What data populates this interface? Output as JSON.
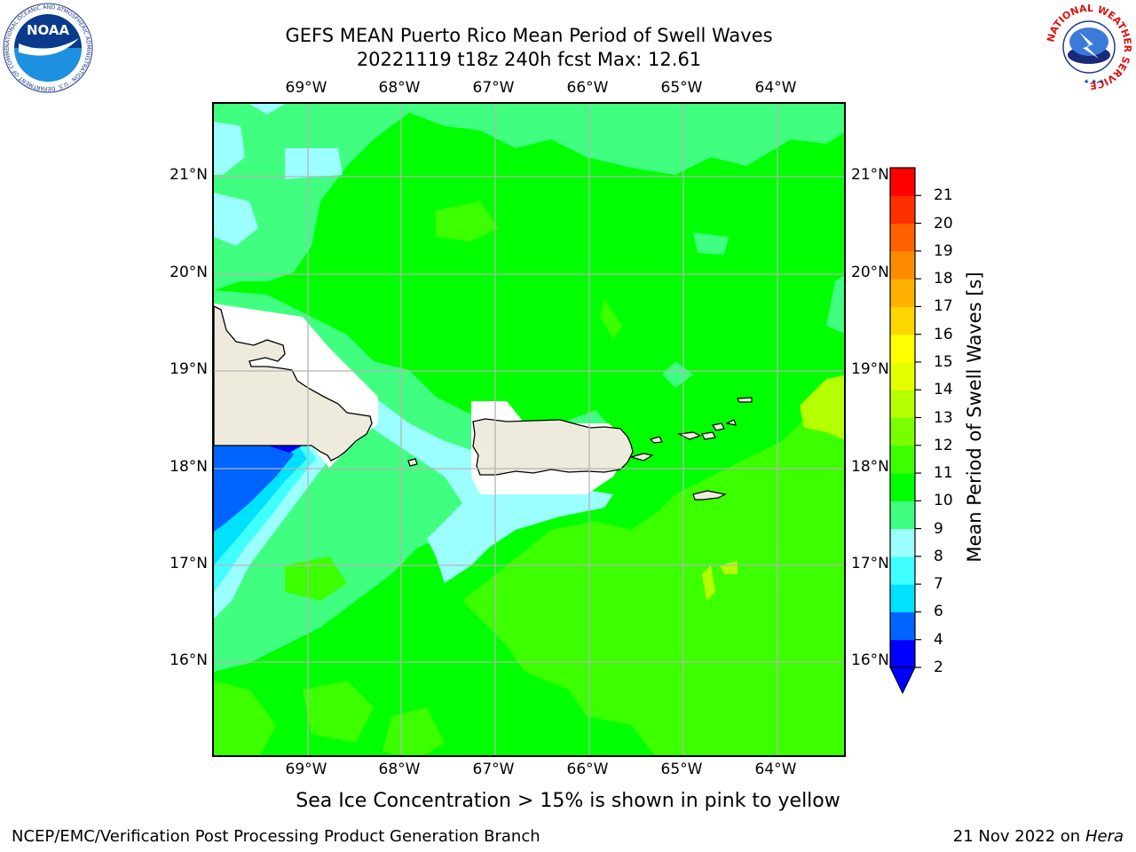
{
  "header": {
    "title_line1": "GEFS MEAN Puerto Rico Mean Period of Swell Waves",
    "title_line2": "20221119 t18z 240h fcst   Max: 12.61"
  },
  "map": {
    "lon_labels": [
      "69°W",
      "68°W",
      "67°W",
      "66°W",
      "65°W",
      "64°W"
    ],
    "lat_labels": [
      "21°N",
      "20°N",
      "19°N",
      "18°N",
      "17°N",
      "16°N"
    ],
    "land_color": "#eeebdc",
    "grid_color": "#b4b4b4"
  },
  "colorbar": {
    "title": "Mean Period of Swell Waves [s]",
    "tick_labels": [
      "2",
      "4",
      "6",
      "7",
      "8",
      "9",
      "10",
      "11",
      "12",
      "13",
      "14",
      "15",
      "16",
      "17",
      "18",
      "19",
      "20",
      "21"
    ],
    "colors": [
      "#0000ff",
      "#0064ff",
      "#00e0ff",
      "#40ffff",
      "#9cffff",
      "#40ff80",
      "#00ff00",
      "#3cff00",
      "#78ff00",
      "#b4ff00",
      "#e6ff00",
      "#ffff00",
      "#ffd700",
      "#ffb000",
      "#ff8c00",
      "#ff6000",
      "#ff3000",
      "#ff0000"
    ]
  },
  "subtitle": "Sea Ice Concentration > 15% is shown in pink to yellow",
  "footer": {
    "left": "NCEP/EMC/Verification Post Processing Product Generation Branch",
    "right_date": "21 Nov 2022 on",
    "right_machine": "Hera"
  },
  "logos": {
    "noaa_text": "NOAA",
    "noaa_ring_text": "NATIONAL OCEANIC AND ATMOSPHERIC ADMINISTRATION · U.S. DEPARTMENT OF COMMERCE",
    "nws_ring_text": "NATIONAL WEATHER SERVICE"
  }
}
